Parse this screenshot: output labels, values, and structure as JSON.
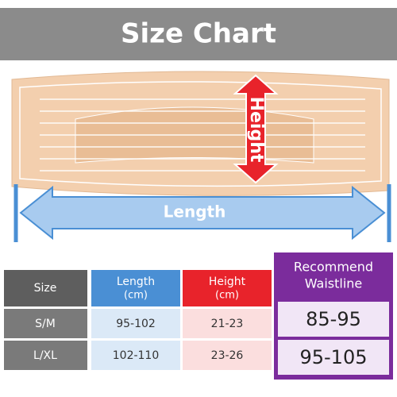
{
  "header": {
    "title": "Size Chart"
  },
  "illustration": {
    "height_label": "Height",
    "length_label": "Length"
  },
  "table": {
    "headers": [
      [
        "Size"
      ],
      [
        "Length",
        "(cm)"
      ],
      [
        "Height",
        "(cm)"
      ],
      [
        "Recommend",
        "Waistline"
      ]
    ],
    "rows": [
      [
        "S/M",
        "95-102",
        "21-23",
        "85-95"
      ],
      [
        "L/XL",
        "102-110",
        "23-26",
        "95-105"
      ]
    ]
  }
}
